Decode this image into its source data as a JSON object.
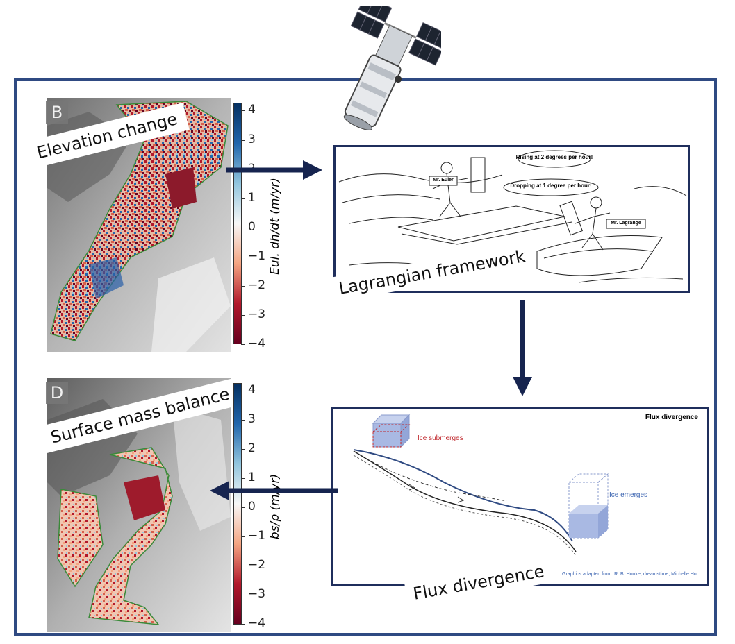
{
  "panels": {
    "top_map": {
      "letter": "B",
      "label": "Elevation change",
      "colorbar_ticks": [
        "4",
        "3",
        "2",
        "1",
        "0",
        "−1",
        "−2",
        "−3",
        "−4"
      ],
      "colorbar_title": "Eul. dh/dt (m/yr)"
    },
    "bottom_map": {
      "letter": "D",
      "label": "Surface mass balance",
      "colorbar_ticks": [
        "4",
        "3",
        "2",
        "1",
        "0",
        "−1",
        "−2",
        "−3",
        "−4"
      ],
      "colorbar_title": "bs/ρ (m/yr)"
    }
  },
  "lagrangian": {
    "caption": "Lagrangian framework",
    "bubble_top": "Rising at 2 degrees per hour!",
    "bubble_bottom": "Dropping at 1 degree per hour!",
    "sign_euler": "Mr. Euler",
    "sign_lagrange": "Mr. Lagrange"
  },
  "flux": {
    "title": "Flux divergence",
    "caption": "Flux divergence",
    "ice_submerges": "Ice submerges",
    "ice_emerges": "Ice emerges",
    "credit": "Graphics adapted from: R. B. Hooke, dreamstime, Michelle Hu"
  },
  "colors": {
    "frame": "#2f4a82",
    "arrow": "#16244f",
    "red": "#b2182b",
    "blue": "#2166ac",
    "glacier_outline": "#3a8a3a",
    "flux_line": "#2f4a82",
    "submerge_text": "#c0282d",
    "emerge_text": "#3a63b0"
  },
  "icons": [
    "satellite-icon"
  ]
}
